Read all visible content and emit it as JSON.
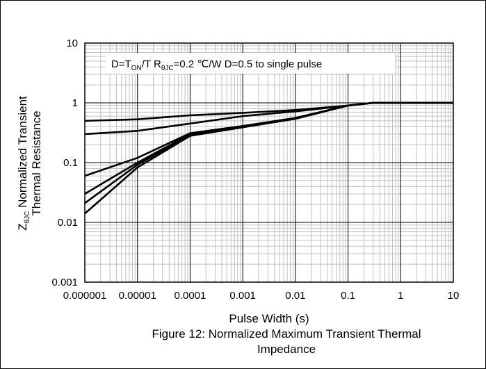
{
  "chart_data": {
    "type": "line",
    "title": "Figure 12: Normalized Maximum Transient Thermal Impedance",
    "title_lines": [
      "Figure 12: Normalized Maximum Transient Thermal",
      "Impedance"
    ],
    "xlabel": "Pulse Width (s)",
    "ylabel": {
      "main": "Z",
      "sub": "θJC",
      "rest": " Normalized Transient",
      "line2": "Thermal Resistance"
    },
    "xscale": "log",
    "yscale": "log",
    "xlim": [
      1e-06,
      10
    ],
    "ylim": [
      0.001,
      10
    ],
    "x_tick_labels": [
      "0.000001",
      "0.00001",
      "0.0001",
      "0.001",
      "0.01",
      "0.1",
      "1",
      "10"
    ],
    "y_tick_labels": [
      "0.001",
      "0.01",
      "0.1",
      "1",
      "10"
    ],
    "grid": {
      "major": true,
      "minor": true
    },
    "annotation": {
      "a": "D=T",
      "a_sub": "ON",
      "b": "/T  R",
      "b_sub": "θJC",
      "c": "=0.2 ℃/W D=0.5 to single pulse"
    },
    "line_color": "#000000",
    "series": [
      {
        "x": [
          1e-06,
          1e-05,
          0.0001,
          0.001,
          0.01,
          0.1,
          0.3,
          1,
          10
        ],
        "values": [
          0.5,
          0.53,
          0.62,
          0.68,
          0.76,
          0.9,
          1,
          1,
          1
        ]
      },
      {
        "x": [
          1e-06,
          1e-05,
          0.0001,
          0.001,
          0.01,
          0.1,
          0.3,
          1,
          10
        ],
        "values": [
          0.3,
          0.34,
          0.45,
          0.6,
          0.72,
          0.9,
          1,
          1,
          1
        ]
      },
      {
        "x": [
          1e-06,
          1e-05,
          0.0001,
          0.001,
          0.01,
          0.1,
          0.3,
          1,
          10
        ],
        "values": [
          0.06,
          0.12,
          0.31,
          0.41,
          0.56,
          0.9,
          1,
          1,
          1
        ]
      },
      {
        "x": [
          1e-06,
          1e-05,
          0.0001,
          0.001,
          0.01,
          0.1,
          0.3,
          1,
          10
        ],
        "values": [
          0.03,
          0.1,
          0.3,
          0.4,
          0.55,
          0.9,
          1,
          1,
          1
        ]
      },
      {
        "x": [
          1e-06,
          1e-05,
          0.0001,
          0.001,
          0.01,
          0.1,
          0.3,
          1,
          10
        ],
        "values": [
          0.021,
          0.092,
          0.29,
          0.4,
          0.55,
          0.9,
          1,
          1,
          1
        ]
      },
      {
        "x": [
          1e-06,
          1e-05,
          0.0001,
          0.001,
          0.01,
          0.1,
          0.3,
          1,
          10
        ],
        "values": [
          0.014,
          0.083,
          0.28,
          0.39,
          0.54,
          0.9,
          1,
          1,
          1
        ]
      }
    ]
  }
}
